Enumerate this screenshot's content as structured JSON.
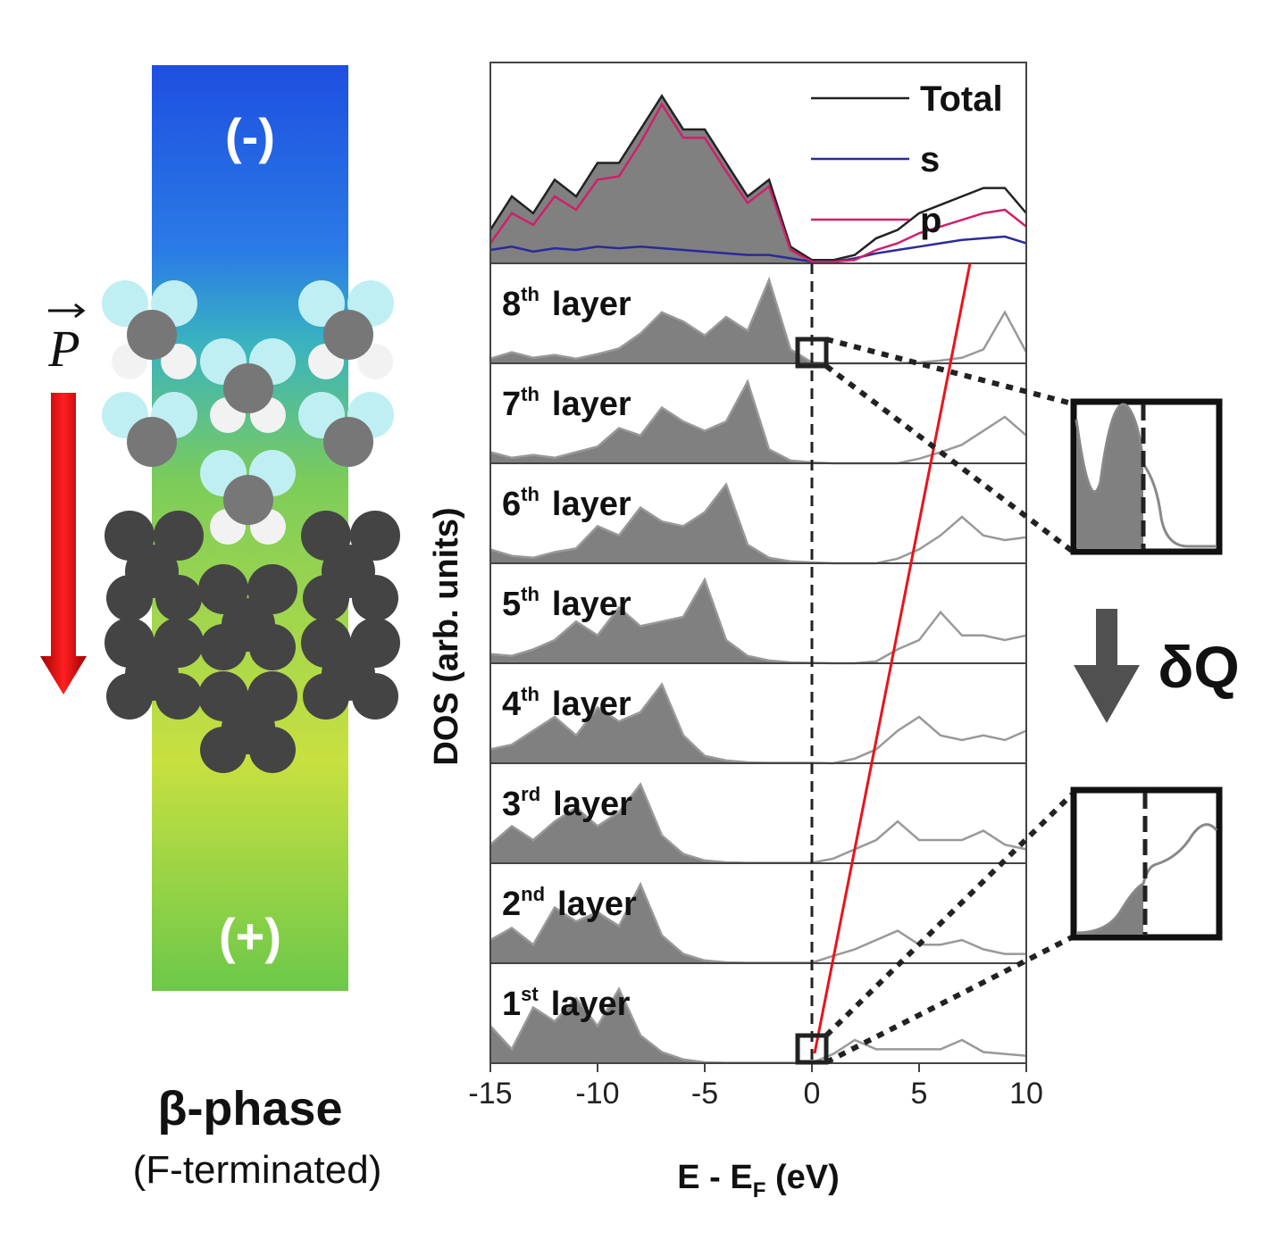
{
  "chart_data": {
    "type": "line",
    "xlabel": [
      "E - E",
      "F",
      " (eV)"
    ],
    "ylabel": "DOS (arb. units)",
    "x": [
      -15,
      -14,
      -13,
      -12,
      -11,
      -10,
      -9,
      -8,
      -7,
      -6,
      -5,
      -4,
      -3,
      -2,
      -1,
      0,
      1,
      2,
      3,
      4,
      5,
      6,
      7,
      8,
      9,
      10
    ],
    "xlim": [
      -15,
      10
    ],
    "xticks": [
      -15,
      -10,
      -5,
      0,
      5,
      10
    ],
    "vline": 0,
    "total_panel": {
      "ylim": [
        0,
        12
      ],
      "series": [
        {
          "name": "Total",
          "color": "#222222",
          "values": [
            2,
            4,
            3,
            5,
            4,
            6,
            6,
            8,
            10,
            8,
            8,
            6,
            4,
            5,
            1,
            0.2,
            0.2,
            0.5,
            1.5,
            2,
            3,
            3.5,
            4,
            4.5,
            4.5,
            3
          ]
        },
        {
          "name": "s",
          "color": "#2a2a9a",
          "values": [
            0.8,
            1,
            0.7,
            0.9,
            0.8,
            1,
            0.9,
            1,
            0.9,
            0.8,
            0.7,
            0.6,
            0.5,
            0.5,
            0.3,
            0.1,
            0.1,
            0.3,
            0.6,
            0.8,
            1,
            1.2,
            1.4,
            1.5,
            1.6,
            1.2
          ]
        },
        {
          "name": "p",
          "color": "#d0206a",
          "values": [
            1.2,
            3,
            2.3,
            4,
            3.2,
            5,
            5.2,
            7.2,
            9.5,
            7.5,
            7.5,
            5.5,
            3.6,
            4.6,
            0.8,
            0.1,
            0.1,
            0.2,
            0.8,
            1.2,
            1.8,
            2.2,
            2.6,
            3,
            3.2,
            2.2
          ]
        }
      ]
    },
    "layers": [
      {
        "number": "8",
        "suffix": "th",
        "word": "layer",
        "values": [
          0.5,
          1.2,
          0.6,
          0.9,
          0.5,
          1.0,
          1.6,
          3.2,
          5.5,
          4.5,
          3.0,
          5.0,
          3.5,
          9.0,
          1.5,
          0.1,
          0,
          0,
          0,
          0,
          0.1,
          0.3,
          0.6,
          1.5,
          5.5,
          1.2
        ]
      },
      {
        "number": "7",
        "suffix": "th",
        "word": "layer",
        "values": [
          1.2,
          0.6,
          0.9,
          0.6,
          1.2,
          1.8,
          3.8,
          3.0,
          6.0,
          4.5,
          3.5,
          4.5,
          8.8,
          1.5,
          0.3,
          0.1,
          0,
          0,
          0,
          0,
          0.5,
          1.2,
          2.0,
          3.5,
          5.0,
          3.0
        ]
      },
      {
        "number": "6",
        "suffix": "th",
        "word": "layer",
        "values": [
          1.5,
          0.8,
          0.6,
          1.2,
          1.6,
          4.0,
          3.0,
          6.0,
          4.5,
          4.0,
          5.5,
          8.5,
          2.0,
          0.6,
          0.2,
          0.1,
          0,
          0,
          0,
          0.5,
          1.5,
          3.0,
          5.0,
          3.0,
          2.5,
          2.8
        ]
      },
      {
        "number": "5",
        "suffix": "th",
        "word": "layer",
        "values": [
          1.0,
          0.8,
          1.5,
          2.5,
          4.5,
          3.0,
          6.0,
          4.0,
          4.5,
          5.0,
          9.0,
          2.5,
          0.8,
          0.3,
          0.1,
          0.05,
          0,
          0,
          0.2,
          1.5,
          2.5,
          5.5,
          3.0,
          3.0,
          2.5,
          3.0
        ]
      },
      {
        "number": "4",
        "suffix": "th",
        "word": "layer",
        "values": [
          1.5,
          2.0,
          3.5,
          5.0,
          3.0,
          6.0,
          4.5,
          5.5,
          8.5,
          3.0,
          0.8,
          0.3,
          0.1,
          0.05,
          0.05,
          0.05,
          0,
          0.5,
          1.5,
          3.5,
          5.0,
          3.0,
          2.5,
          3.0,
          2.5,
          3.5
        ]
      },
      {
        "number": "3",
        "suffix": "rd",
        "word": "layer",
        "values": [
          2.0,
          4.0,
          2.5,
          4.5,
          6.0,
          4.0,
          5.5,
          8.5,
          3.0,
          1.0,
          0.3,
          0.1,
          0.05,
          0.05,
          0.05,
          0.05,
          0.5,
          1.5,
          2.5,
          4.5,
          2.5,
          2.5,
          2.5,
          3.5,
          2.0,
          1.5
        ]
      },
      {
        "number": "2",
        "suffix": "nd",
        "word": "layer",
        "values": [
          2.5,
          3.8,
          2.0,
          6.0,
          4.5,
          5.5,
          4.0,
          8.5,
          3.0,
          1.0,
          0.3,
          0.1,
          0.05,
          0.05,
          0.05,
          0.05,
          0.8,
          1.5,
          2.5,
          3.5,
          2.0,
          2.0,
          2.5,
          1.5,
          1.0,
          1.0
        ]
      },
      {
        "number": "1",
        "suffix": "st",
        "word": "layer",
        "values": [
          4.0,
          1.5,
          6.0,
          4.5,
          7.0,
          4.0,
          8.0,
          3.0,
          1.2,
          0.4,
          0.1,
          0.05,
          0.05,
          0.05,
          0.05,
          0.05,
          1.0,
          2.5,
          1.5,
          1.5,
          1.5,
          1.5,
          2.5,
          1.2,
          1.0,
          0.8
        ]
      }
    ],
    "layer_ylim": [
      0,
      10
    ],
    "fill_color": "#808080",
    "line_color": "#999999"
  },
  "figure": {
    "top_label": "(-)",
    "bottom_label": "(+)",
    "polarization": "P",
    "phase": "β-phase",
    "termination": "(F-terminated)",
    "charge_label": "δQ"
  }
}
